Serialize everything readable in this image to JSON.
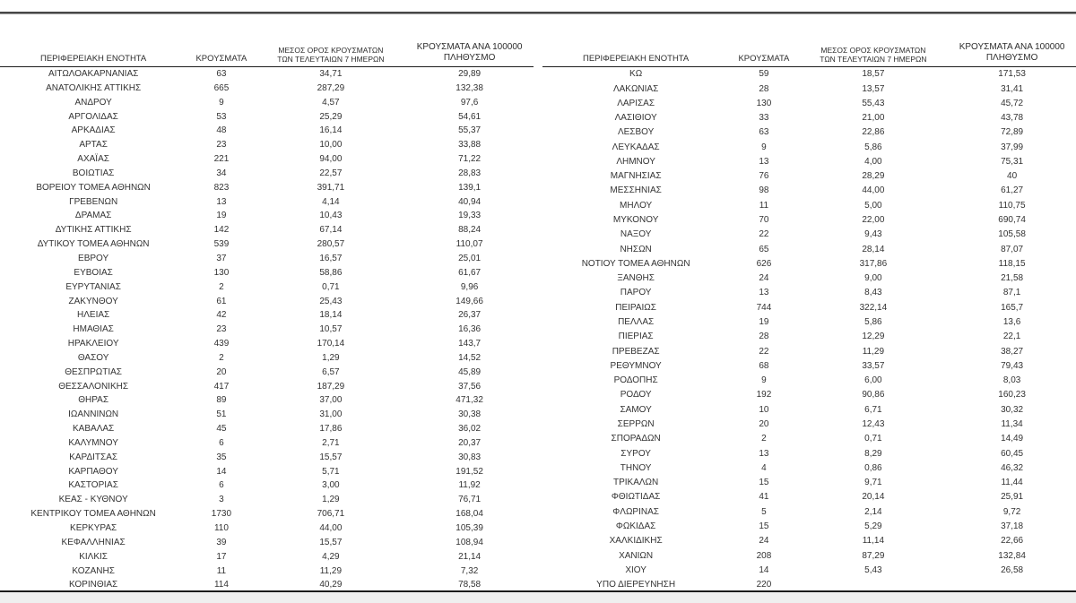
{
  "colors": {
    "text": "#333333",
    "header_text": "#2d2d2d",
    "rule": "#1a1a1a",
    "top_bar": "#474747",
    "footer_band": "#efefef"
  },
  "headers": {
    "region": "ΠΕΡΙΦΕΡΕΙΑΚΗ ΕΝΟΤΗΤΑ",
    "cases": "ΚΡΟΥΣΜΑΤΑ",
    "avg7_line1": "ΜΕΣΟΣ ΟΡΟΣ ΚΡΟΥΣΜΑΤΩΝ",
    "avg7_line2": "ΤΩΝ ΤΕΛΕΥΤΑΙΩΝ 7 ΗΜΕΡΩΝ",
    "per100k_line1": "ΚΡΟΥΣΜΑΤΑ ΑΝΑ 100000",
    "per100k_line2": "ΠΛΗΘΥΣΜΟ"
  },
  "left_table": {
    "rows": [
      [
        "ΑΙΤΩΛΟΑΚΑΡΝΑΝΙΑΣ",
        "63",
        "34,71",
        "29,89"
      ],
      [
        "ΑΝΑΤΟΛΙΚΗΣ ΑΤΤΙΚΗΣ",
        "665",
        "287,29",
        "132,38"
      ],
      [
        "ΑΝΔΡΟΥ",
        "9",
        "4,57",
        "97,6"
      ],
      [
        "ΑΡΓΟΛΙΔΑΣ",
        "53",
        "25,29",
        "54,61"
      ],
      [
        "ΑΡΚΑΔΙΑΣ",
        "48",
        "16,14",
        "55,37"
      ],
      [
        "ΑΡΤΑΣ",
        "23",
        "10,00",
        "33,88"
      ],
      [
        "ΑΧΑΪΑΣ",
        "221",
        "94,00",
        "71,22"
      ],
      [
        "ΒΟΙΩΤΙΑΣ",
        "34",
        "22,57",
        "28,83"
      ],
      [
        "ΒΟΡΕΙΟΥ ΤΟΜΕΑ ΑΘΗΝΩΝ",
        "823",
        "391,71",
        "139,1"
      ],
      [
        "ΓΡΕΒΕΝΩΝ",
        "13",
        "4,14",
        "40,94"
      ],
      [
        "ΔΡΑΜΑΣ",
        "19",
        "10,43",
        "19,33"
      ],
      [
        "ΔΥΤΙΚΗΣ ΑΤΤΙΚΗΣ",
        "142",
        "67,14",
        "88,24"
      ],
      [
        "ΔΥΤΙΚΟΥ ΤΟΜΕΑ ΑΘΗΝΩΝ",
        "539",
        "280,57",
        "110,07"
      ],
      [
        "ΕΒΡΟΥ",
        "37",
        "16,57",
        "25,01"
      ],
      [
        "ΕΥΒΟΙΑΣ",
        "130",
        "58,86",
        "61,67"
      ],
      [
        "ΕΥΡΥΤΑΝΙΑΣ",
        "2",
        "0,71",
        "9,96"
      ],
      [
        "ΖΑΚΥΝΘΟΥ",
        "61",
        "25,43",
        "149,66"
      ],
      [
        "ΗΛΕΙΑΣ",
        "42",
        "18,14",
        "26,37"
      ],
      [
        "ΗΜΑΘΙΑΣ",
        "23",
        "10,57",
        "16,36"
      ],
      [
        "ΗΡΑΚΛΕΙΟΥ",
        "439",
        "170,14",
        "143,7"
      ],
      [
        "ΘΑΣΟΥ",
        "2",
        "1,29",
        "14,52"
      ],
      [
        "ΘΕΣΠΡΩΤΙΑΣ",
        "20",
        "6,57",
        "45,89"
      ],
      [
        "ΘΕΣΣΑΛΟΝΙΚΗΣ",
        "417",
        "187,29",
        "37,56"
      ],
      [
        "ΘΗΡΑΣ",
        "89",
        "37,00",
        "471,32"
      ],
      [
        "ΙΩΑΝΝΙΝΩΝ",
        "51",
        "31,00",
        "30,38"
      ],
      [
        "ΚΑΒΑΛΑΣ",
        "45",
        "17,86",
        "36,02"
      ],
      [
        "ΚΑΛΥΜΝΟΥ",
        "6",
        "2,71",
        "20,37"
      ],
      [
        "ΚΑΡΔΙΤΣΑΣ",
        "35",
        "15,57",
        "30,83"
      ],
      [
        "ΚΑΡΠΑΘΟΥ",
        "14",
        "5,71",
        "191,52"
      ],
      [
        "ΚΑΣΤΟΡΙΑΣ",
        "6",
        "3,00",
        "11,92"
      ],
      [
        "ΚΕΑΣ - ΚΥΘΝΟΥ",
        "3",
        "1,29",
        "76,71"
      ],
      [
        "ΚΕΝΤΡΙΚΟΥ ΤΟΜΕΑ ΑΘΗΝΩΝ",
        "1730",
        "706,71",
        "168,04"
      ],
      [
        "ΚΕΡΚΥΡΑΣ",
        "110",
        "44,00",
        "105,39"
      ],
      [
        "ΚΕΦΑΛΛΗΝΙΑΣ",
        "39",
        "15,57",
        "108,94"
      ],
      [
        "ΚΙΛΚΙΣ",
        "17",
        "4,29",
        "21,14"
      ],
      [
        "ΚΟΖΑΝΗΣ",
        "11",
        "11,29",
        "7,32"
      ],
      [
        "ΚΟΡΙΝΘΙΑΣ",
        "114",
        "40,29",
        "78,58"
      ]
    ]
  },
  "right_table": {
    "rows": [
      [
        "ΚΩ",
        "59",
        "18,57",
        "171,53"
      ],
      [
        "ΛΑΚΩΝΙΑΣ",
        "28",
        "13,57",
        "31,41"
      ],
      [
        "ΛΑΡΙΣΑΣ",
        "130",
        "55,43",
        "45,72"
      ],
      [
        "ΛΑΣΙΘΙΟΥ",
        "33",
        "21,00",
        "43,78"
      ],
      [
        "ΛΕΣΒΟΥ",
        "63",
        "22,86",
        "72,89"
      ],
      [
        "ΛΕΥΚΑΔΑΣ",
        "9",
        "5,86",
        "37,99"
      ],
      [
        "ΛΗΜΝΟΥ",
        "13",
        "4,00",
        "75,31"
      ],
      [
        "ΜΑΓΝΗΣΙΑΣ",
        "76",
        "28,29",
        "40"
      ],
      [
        "ΜΕΣΣΗΝΙΑΣ",
        "98",
        "44,00",
        "61,27"
      ],
      [
        "ΜΗΛΟΥ",
        "11",
        "5,00",
        "110,75"
      ],
      [
        "ΜΥΚΟΝΟΥ",
        "70",
        "22,00",
        "690,74"
      ],
      [
        "ΝΑΞΟΥ",
        "22",
        "9,43",
        "105,58"
      ],
      [
        "ΝΗΣΩΝ",
        "65",
        "28,14",
        "87,07"
      ],
      [
        "ΝΟΤΙΟΥ ΤΟΜΕΑ ΑΘΗΝΩΝ",
        "626",
        "317,86",
        "118,15"
      ],
      [
        "ΞΑΝΘΗΣ",
        "24",
        "9,00",
        "21,58"
      ],
      [
        "ΠΑΡΟΥ",
        "13",
        "8,43",
        "87,1"
      ],
      [
        "ΠΕΙΡΑΙΩΣ",
        "744",
        "322,14",
        "165,7"
      ],
      [
        "ΠΕΛΛΑΣ",
        "19",
        "5,86",
        "13,6"
      ],
      [
        "ΠΙΕΡΙΑΣ",
        "28",
        "12,29",
        "22,1"
      ],
      [
        "ΠΡΕΒΕΖΑΣ",
        "22",
        "11,29",
        "38,27"
      ],
      [
        "ΡΕΘΥΜΝΟΥ",
        "68",
        "33,57",
        "79,43"
      ],
      [
        "ΡΟΔΟΠΗΣ",
        "9",
        "6,00",
        "8,03"
      ],
      [
        "ΡΟΔΟΥ",
        "192",
        "90,86",
        "160,23"
      ],
      [
        "ΣΑΜΟΥ",
        "10",
        "6,71",
        "30,32"
      ],
      [
        "ΣΕΡΡΩΝ",
        "20",
        "12,43",
        "11,34"
      ],
      [
        "ΣΠΟΡΑΔΩΝ",
        "2",
        "0,71",
        "14,49"
      ],
      [
        "ΣΥΡΟΥ",
        "13",
        "8,29",
        "60,45"
      ],
      [
        "ΤΗΝΟΥ",
        "4",
        "0,86",
        "46,32"
      ],
      [
        "ΤΡΙΚΑΛΩΝ",
        "15",
        "9,71",
        "11,44"
      ],
      [
        "ΦΘΙΩΤΙΔΑΣ",
        "41",
        "20,14",
        "25,91"
      ],
      [
        "ΦΛΩΡΙΝΑΣ",
        "5",
        "2,14",
        "9,72"
      ],
      [
        "ΦΩΚΙΔΑΣ",
        "15",
        "5,29",
        "37,18"
      ],
      [
        "ΧΑΛΚΙΔΙΚΗΣ",
        "24",
        "11,14",
        "22,66"
      ],
      [
        "ΧΑΝΙΩΝ",
        "208",
        "87,29",
        "132,84"
      ],
      [
        "ΧΙΟΥ",
        "14",
        "5,43",
        "26,58"
      ],
      [
        "ΥΠΟ ΔΙΕΡΕΥΝΗΣΗ",
        "220",
        "",
        ""
      ]
    ]
  }
}
